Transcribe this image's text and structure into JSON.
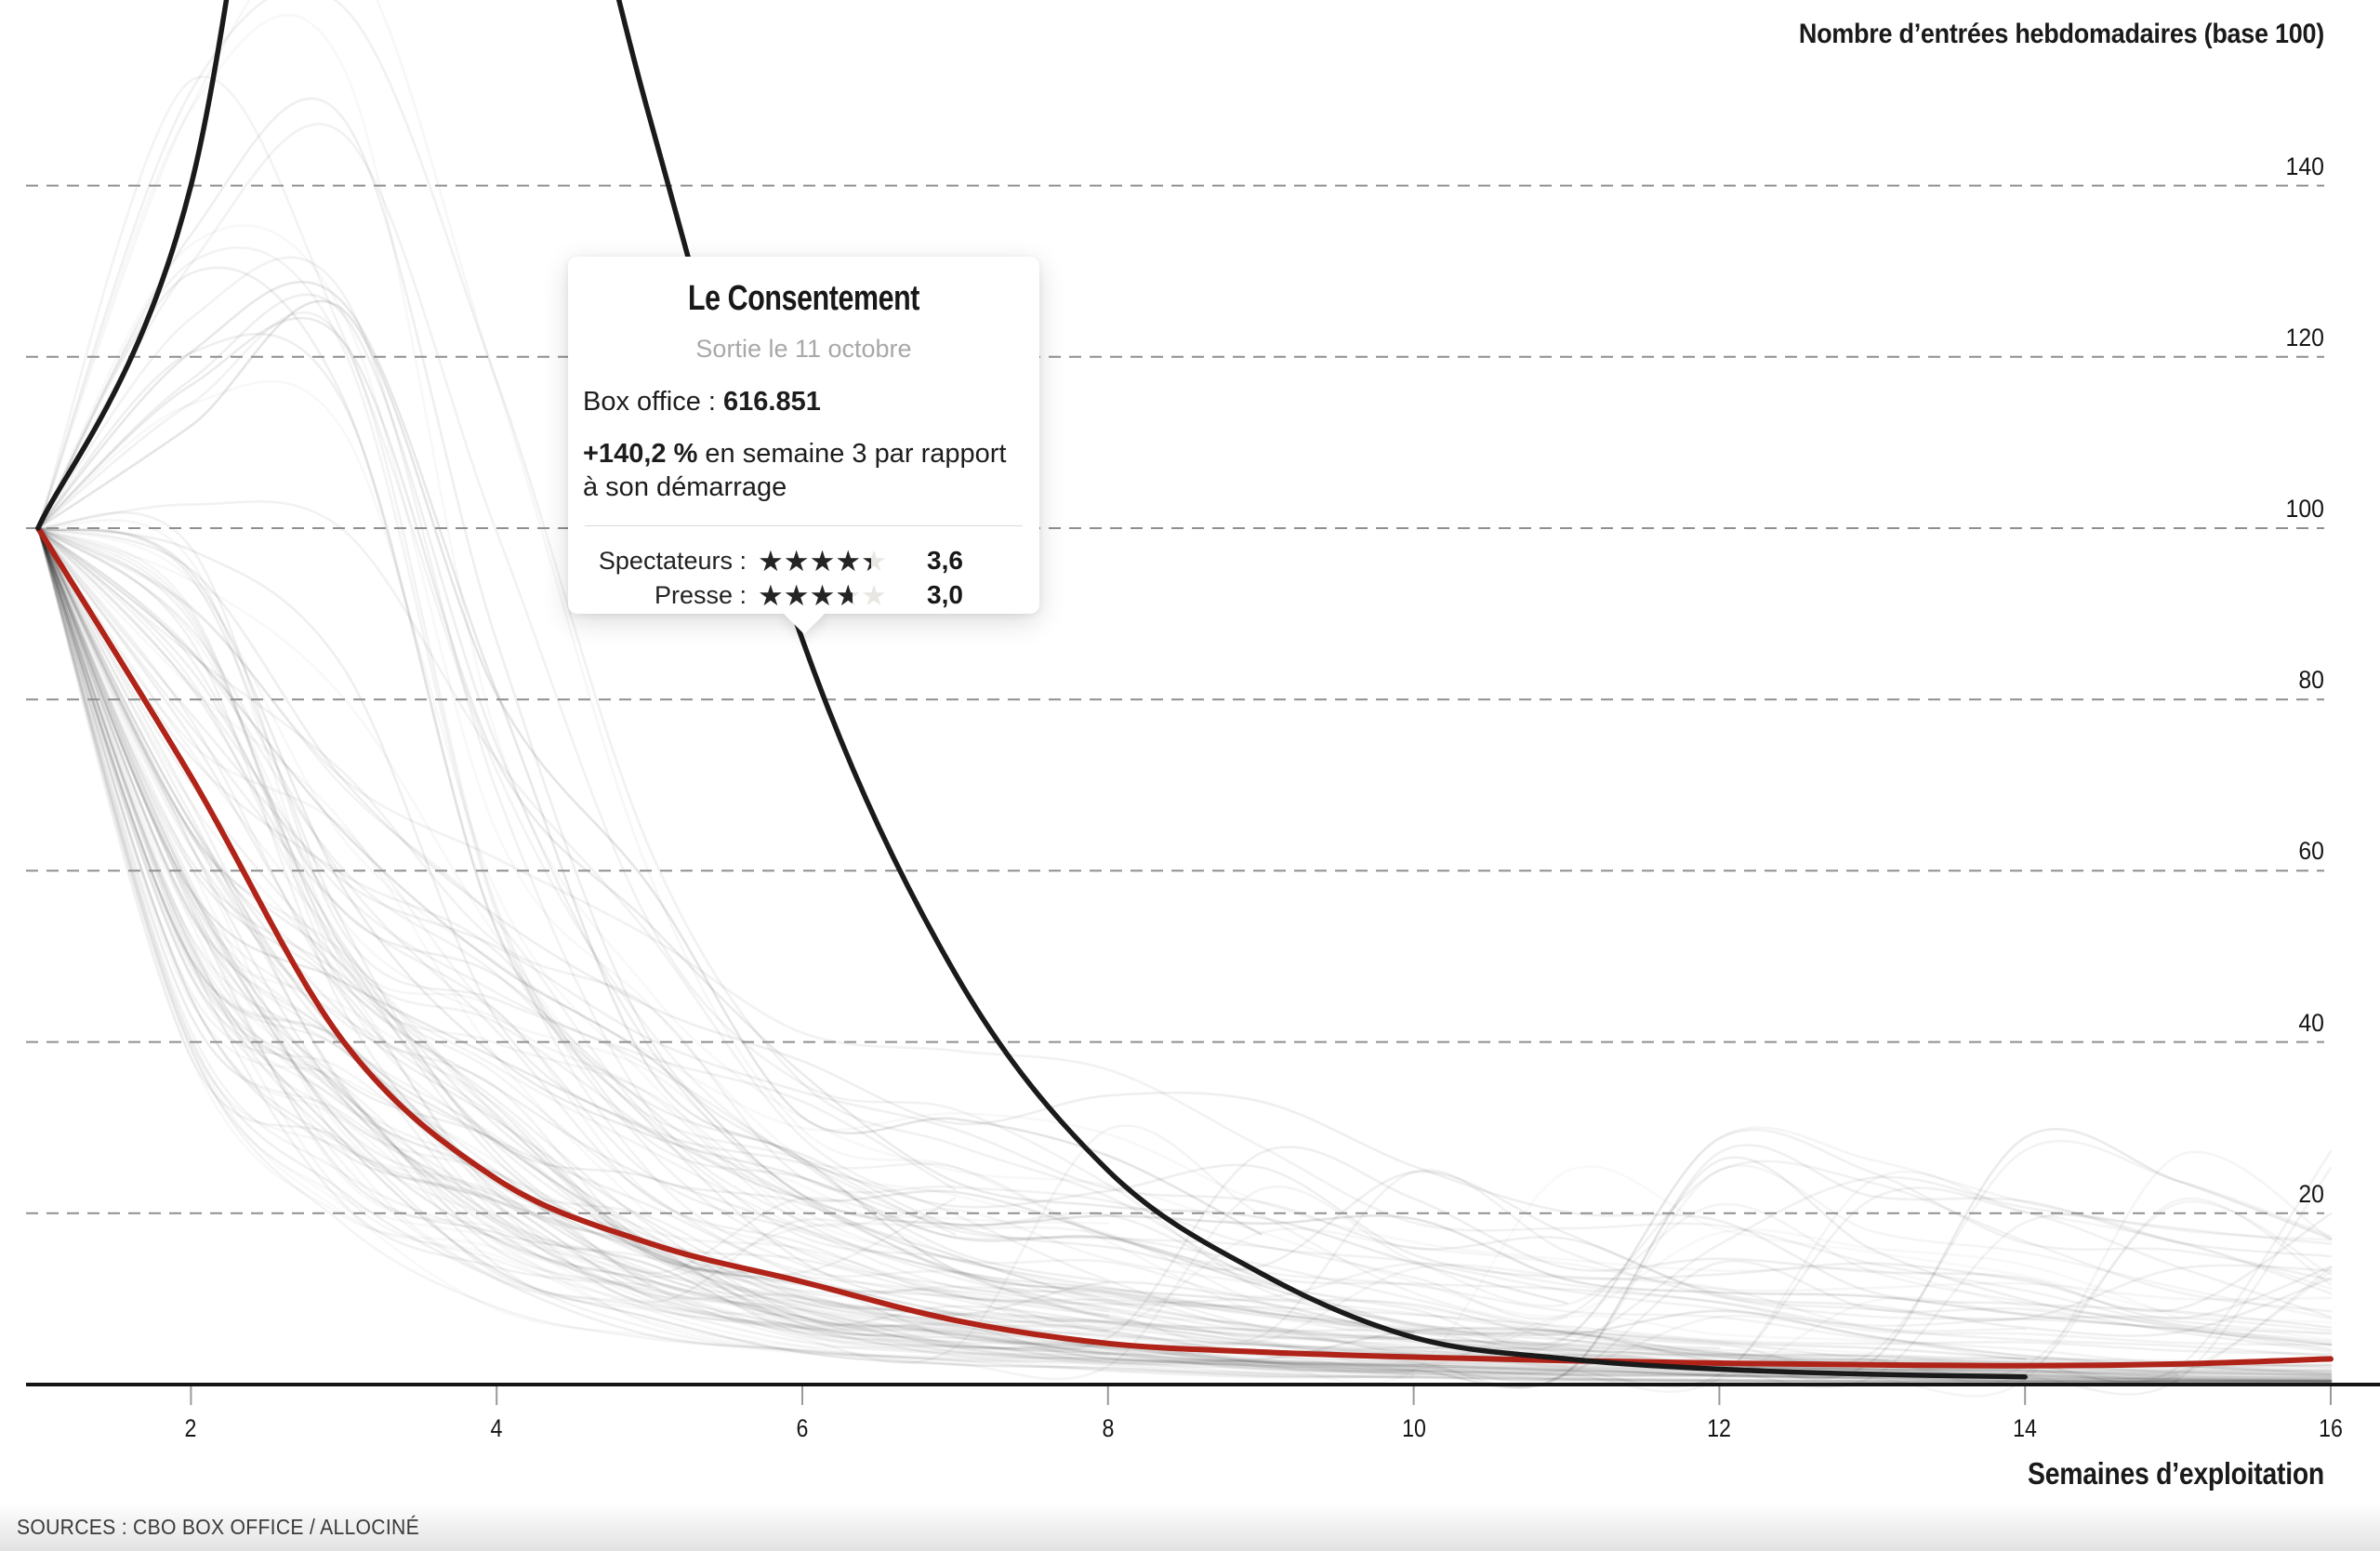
{
  "header": {
    "title": "Nombre d’entrées hebdomadaires (base 100)"
  },
  "footer": {
    "sources": "SOURCES : CBO BOX OFFICE / ALLOCINÉ"
  },
  "tooltip": {
    "title": "Le Consentement",
    "release_date": "Sortie le 11 octobre",
    "box_office_label": "Box office :",
    "box_office_value": "616.851",
    "delta_bold": "+140,2 %",
    "delta_text": "en semaine 3 par rapport",
    "delta_text_line2": "à son démarrage",
    "stars_glyphs": "★★★★★",
    "ratings": [
      {
        "label": "Spectateurs :",
        "value_text": "3,6",
        "value": 3.6
      },
      {
        "label": "Presse :",
        "value_text": "3,0",
        "value": 3.0
      }
    ]
  },
  "chart_data": {
    "type": "line",
    "title": "Nombre d’entrées hebdomadaires (base 100)",
    "xlabel": "Semaines d’exploitation",
    "ylabel": "Nombre d’entrées hebdomadaires (base 100)",
    "xlim": [
      1,
      16
    ],
    "ylim": [
      0,
      161
    ],
    "x_ticks": [
      2,
      4,
      6,
      8,
      10,
      12,
      14,
      16
    ],
    "y_ticks": [
      140,
      120,
      100,
      80,
      60,
      40,
      20
    ],
    "grid": "horizontal-dashed",
    "legend": "none",
    "series": [
      {
        "id": "le-consentement",
        "name": "Le Consentement",
        "color": "#1a1a1a",
        "weeks": [
          1,
          2,
          3,
          4,
          5,
          6,
          7,
          8,
          9,
          10,
          11,
          12,
          13,
          14
        ],
        "values": [
          100,
          140,
          240.2,
          215,
          148,
          87,
          48,
          25,
          13,
          5.5,
          3,
          1.8,
          1.2,
          0.9
        ]
      },
      {
        "id": "reference-red",
        "name": "",
        "color": "#b02318",
        "weeks": [
          1,
          2,
          3,
          4,
          5,
          6,
          7,
          8,
          9,
          10,
          11,
          12,
          13,
          14,
          15,
          16
        ],
        "values": [
          100,
          71,
          40,
          24,
          16.5,
          12,
          7.5,
          4.8,
          3.8,
          3.2,
          2.8,
          2.5,
          2.3,
          2.2,
          2.4,
          3.0
        ]
      }
    ],
    "background_curves": {
      "count": 115,
      "color": "#1a1a1a",
      "opacity_range": [
        0.03,
        0.12
      ]
    }
  },
  "colors": {
    "accent_red": "#b02318",
    "line_black": "#1a1a1a",
    "grid": "#8f8f8f",
    "axis": "#141414",
    "tick": "#999999",
    "muted_text": "#a8a8a8",
    "star_empty": "#e8e7e2",
    "star_filled": "#242424",
    "footer_bg_end": "#e2e2e2"
  }
}
